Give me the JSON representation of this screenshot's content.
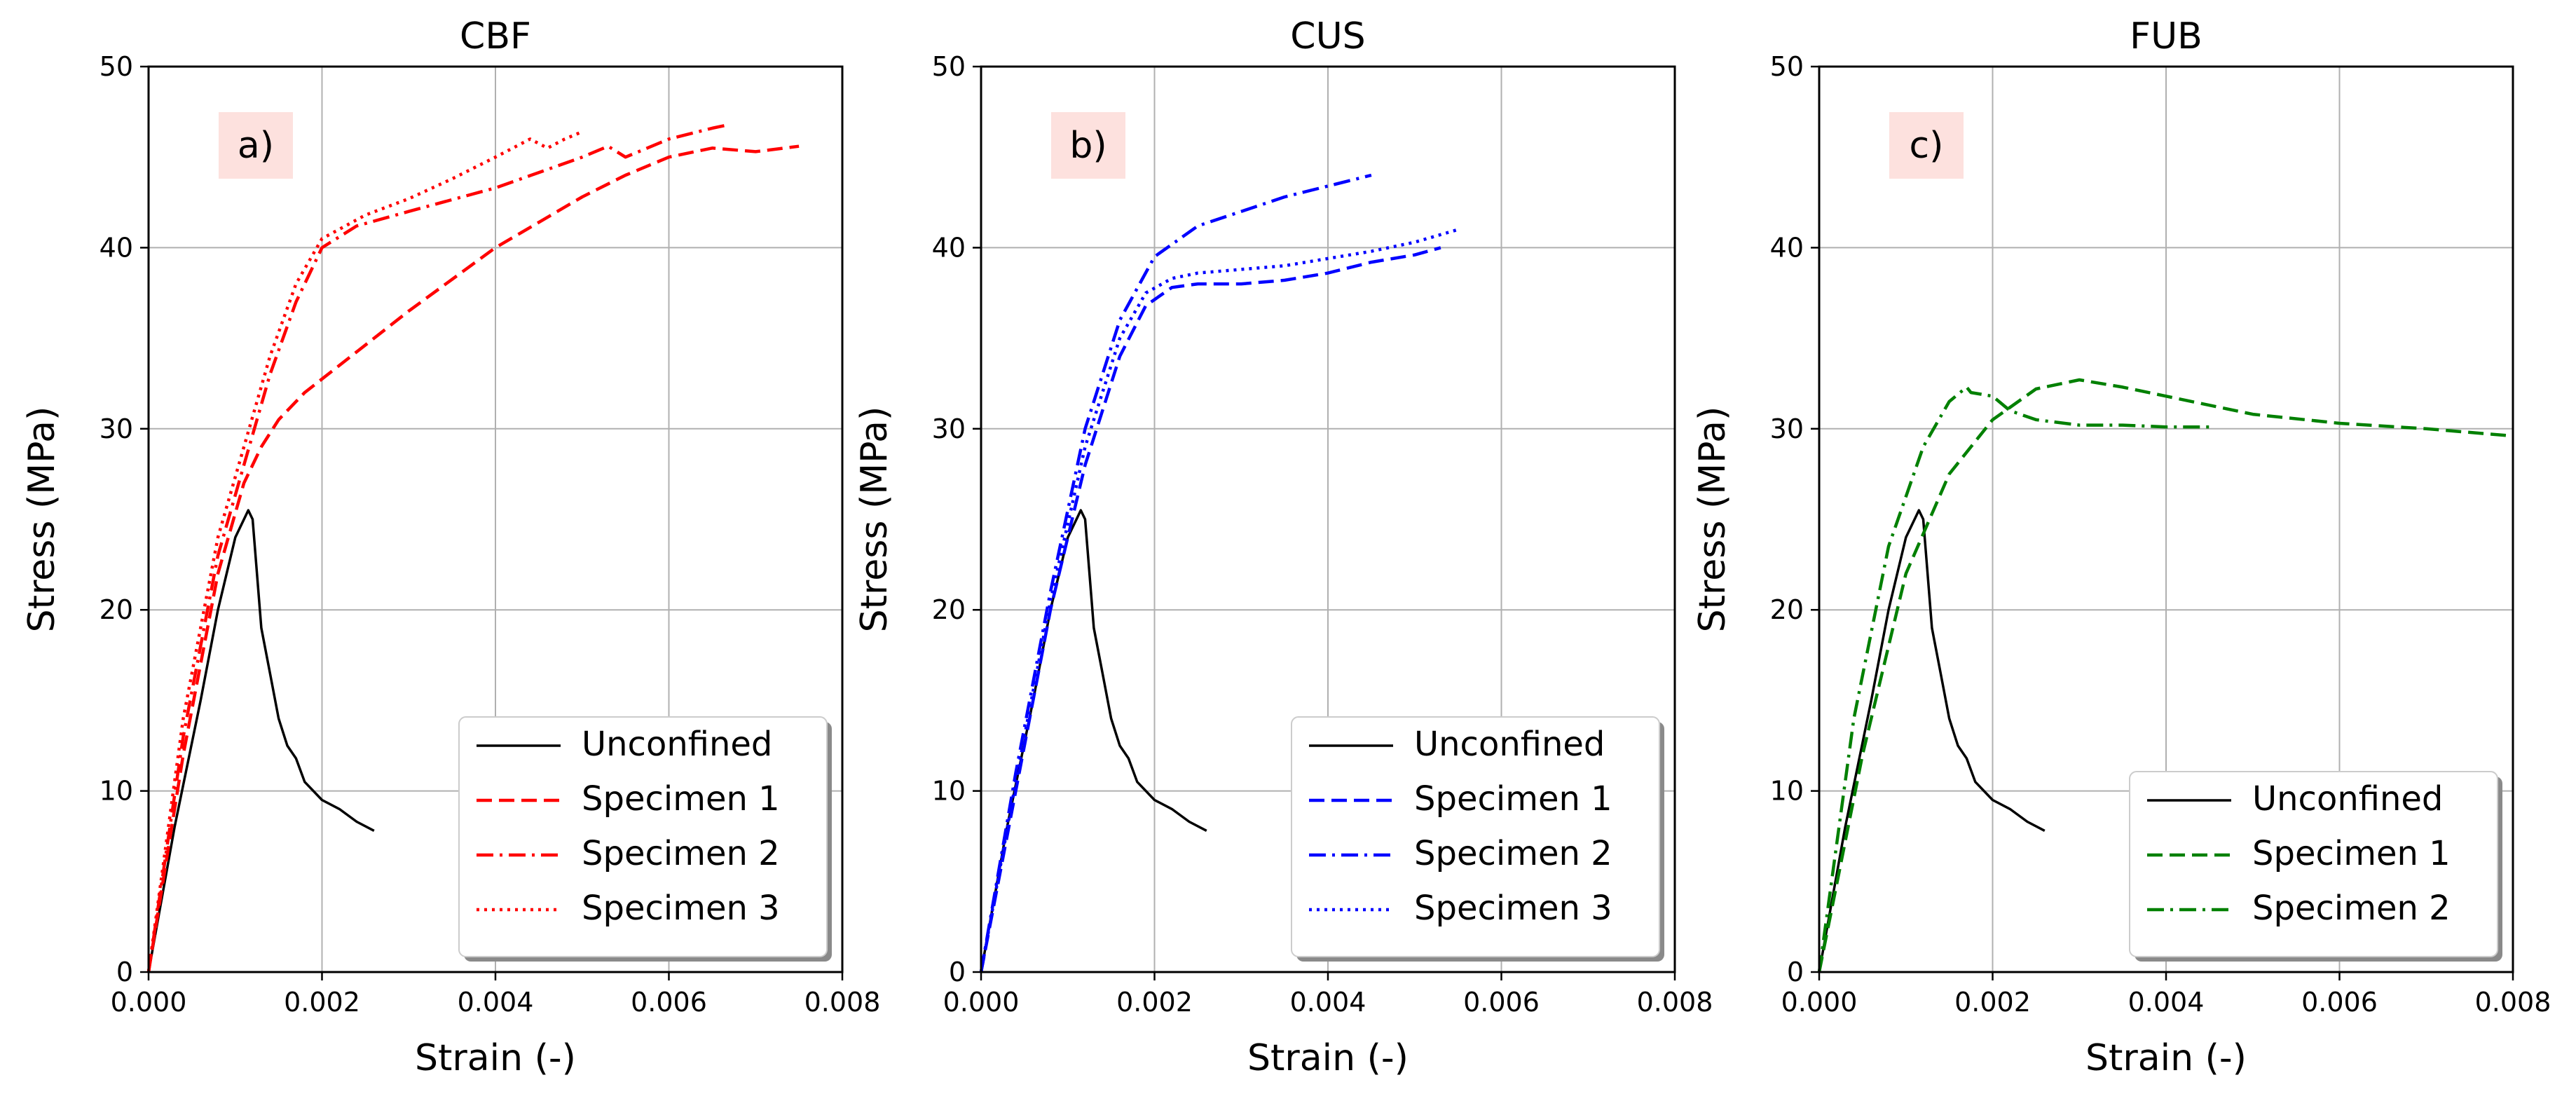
{
  "chart_data": [
    {
      "type": "line",
      "title": "CBF",
      "panel_label": "a)",
      "xlabel": "Strain (-)",
      "ylabel": "Stress (MPa)",
      "xlim": [
        0,
        0.008
      ],
      "ylim": [
        0,
        50
      ],
      "xticks": [
        "0.000",
        "0.002",
        "0.004",
        "0.006",
        "0.008"
      ],
      "yticks": [
        "0",
        "10",
        "20",
        "30",
        "40",
        "50"
      ],
      "grid": true,
      "legend_position": "lower-right",
      "series": [
        {
          "name": "Unconfined",
          "color": "#000000",
          "style": "solid",
          "x": [
            0,
            0.0003,
            0.0006,
            0.0008,
            0.001,
            0.00115,
            0.0012,
            0.00125,
            0.0013,
            0.0014,
            0.0015,
            0.0016,
            0.0017,
            0.0018,
            0.002,
            0.0022,
            0.0024,
            0.0026
          ],
          "y": [
            0,
            8,
            15,
            20,
            24,
            25.5,
            25,
            22,
            19,
            16.5,
            14,
            12.5,
            11.8,
            10.5,
            9.5,
            9,
            8.3,
            7.8
          ]
        },
        {
          "name": "Specimen 1",
          "color": "#ff0000",
          "style": "dashed",
          "x": [
            0,
            0.0004,
            0.0008,
            0.0011,
            0.0013,
            0.0015,
            0.0018,
            0.0022,
            0.003,
            0.004,
            0.005,
            0.0055,
            0.006,
            0.0065,
            0.007,
            0.0075
          ],
          "y": [
            0,
            12,
            22,
            27,
            29,
            30.5,
            32,
            33.5,
            36.5,
            40,
            42.8,
            44,
            45,
            45.5,
            45.3,
            45.6
          ]
        },
        {
          "name": "Specimen 2",
          "color": "#ff0000",
          "style": "dashdot",
          "x": [
            0,
            0.0004,
            0.0008,
            0.0011,
            0.0014,
            0.0017,
            0.002,
            0.0024,
            0.003,
            0.004,
            0.005,
            0.0053,
            0.0055,
            0.006,
            0.0065,
            0.0067
          ],
          "y": [
            0,
            13,
            23,
            28,
            33,
            37,
            40,
            41.2,
            42,
            43.3,
            45,
            45.6,
            45,
            46,
            46.6,
            46.8
          ]
        },
        {
          "name": "Specimen 3",
          "color": "#ff0000",
          "style": "dotted",
          "x": [
            0,
            0.0004,
            0.0008,
            0.0011,
            0.0014,
            0.0017,
            0.002,
            0.0025,
            0.003,
            0.0035,
            0.004,
            0.0044,
            0.0046,
            0.0048,
            0.005
          ],
          "y": [
            0,
            14,
            24,
            29,
            34,
            38,
            40.5,
            41.8,
            42.7,
            43.8,
            45,
            46,
            45.5,
            46,
            46.4
          ]
        }
      ]
    },
    {
      "type": "line",
      "title": "CUS",
      "panel_label": "b)",
      "xlabel": "Strain (-)",
      "ylabel": "Stress (MPa)",
      "xlim": [
        0,
        0.008
      ],
      "ylim": [
        0,
        50
      ],
      "xticks": [
        "0.000",
        "0.002",
        "0.004",
        "0.006",
        "0.008"
      ],
      "yticks": [
        "0",
        "10",
        "20",
        "30",
        "40",
        "50"
      ],
      "grid": true,
      "legend_position": "lower-right",
      "series": [
        {
          "name": "Unconfined",
          "color": "#000000",
          "style": "solid",
          "x": [
            0,
            0.0003,
            0.0006,
            0.0008,
            0.001,
            0.00115,
            0.0012,
            0.00125,
            0.0013,
            0.0014,
            0.0015,
            0.0016,
            0.0017,
            0.0018,
            0.002,
            0.0022,
            0.0024,
            0.0026
          ],
          "y": [
            0,
            8,
            15,
            20,
            24,
            25.5,
            25,
            22,
            19,
            16.5,
            14,
            12.5,
            11.8,
            10.5,
            9.5,
            9,
            8.3,
            7.8
          ]
        },
        {
          "name": "Specimen 1",
          "color": "#0000ff",
          "style": "dashed",
          "x": [
            0,
            0.0004,
            0.0008,
            0.0012,
            0.0016,
            0.0019,
            0.0022,
            0.0025,
            0.003,
            0.0035,
            0.004,
            0.0045,
            0.005,
            0.0053
          ],
          "y": [
            0,
            10,
            20,
            28,
            34,
            36.8,
            37.8,
            38,
            38,
            38.2,
            38.6,
            39.2,
            39.6,
            40
          ]
        },
        {
          "name": "Specimen 2",
          "color": "#0000ff",
          "style": "dashdot",
          "x": [
            0,
            0.0004,
            0.0008,
            0.0012,
            0.0016,
            0.002,
            0.0025,
            0.003,
            0.0035,
            0.004,
            0.0045
          ],
          "y": [
            0,
            11,
            21,
            30,
            36,
            39.5,
            41.2,
            42,
            42.8,
            43.4,
            44
          ]
        },
        {
          "name": "Specimen 3",
          "color": "#0000ff",
          "style": "dotted",
          "x": [
            0,
            0.0004,
            0.0008,
            0.0012,
            0.0016,
            0.0019,
            0.0022,
            0.0025,
            0.003,
            0.0035,
            0.004,
            0.0045,
            0.005,
            0.0055
          ],
          "y": [
            0,
            10.5,
            20.5,
            29,
            35,
            37.5,
            38.3,
            38.6,
            38.8,
            39,
            39.4,
            39.8,
            40.3,
            41
          ]
        }
      ]
    },
    {
      "type": "line",
      "title": "FUB",
      "panel_label": "c)",
      "xlabel": "Strain (-)",
      "ylabel": "Stress (MPa)",
      "xlim": [
        0,
        0.008
      ],
      "ylim": [
        0,
        50
      ],
      "xticks": [
        "0.000",
        "0.002",
        "0.004",
        "0.006",
        "0.008"
      ],
      "yticks": [
        "0",
        "10",
        "20",
        "30",
        "40",
        "50"
      ],
      "grid": true,
      "legend_position": "lower-right",
      "series": [
        {
          "name": "Unconfined",
          "color": "#000000",
          "style": "solid",
          "x": [
            0,
            0.0003,
            0.0006,
            0.0008,
            0.001,
            0.00115,
            0.0012,
            0.00125,
            0.0013,
            0.0014,
            0.0015,
            0.0016,
            0.0017,
            0.0018,
            0.002,
            0.0022,
            0.0024,
            0.0026
          ],
          "y": [
            0,
            8,
            15,
            20,
            24,
            25.5,
            25,
            22,
            19,
            16.5,
            14,
            12.5,
            11.8,
            10.5,
            9.5,
            9,
            8.3,
            7.8
          ]
        },
        {
          "name": "Specimen 1",
          "color": "#008000",
          "style": "dashed",
          "x": [
            0,
            0.0005,
            0.001,
            0.0015,
            0.002,
            0.0025,
            0.003,
            0.0035,
            0.004,
            0.005,
            0.006,
            0.007,
            0.008
          ],
          "y": [
            0,
            12,
            22,
            27.5,
            30.5,
            32.2,
            32.7,
            32.3,
            31.8,
            30.8,
            30.3,
            30,
            29.6
          ]
        },
        {
          "name": "Specimen 2",
          "color": "#008000",
          "style": "dashdot",
          "x": [
            0,
            0.0004,
            0.0008,
            0.0012,
            0.0015,
            0.0017,
            0.00175,
            0.002,
            0.0022,
            0.0025,
            0.003,
            0.0035,
            0.004,
            0.0045
          ],
          "y": [
            0,
            14,
            23.5,
            29,
            31.5,
            32.3,
            32,
            31.8,
            31,
            30.5,
            30.2,
            30.2,
            30.1,
            30.1
          ]
        }
      ]
    }
  ]
}
